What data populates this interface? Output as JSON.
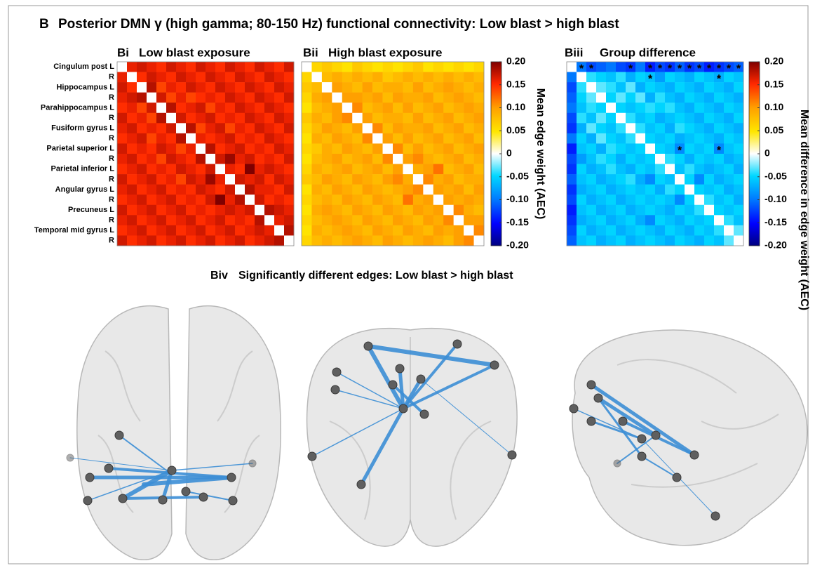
{
  "panel_label": "B",
  "title": "Posterior DMN γ (high gamma; 80-150 Hz) functional connectivity: Low blast > high blast",
  "region_labels": [
    "Cingulum post L",
    "R",
    "Hippocampus L",
    "R",
    "Parahippocampus L",
    "R",
    "Fusiform gyrus L",
    "R",
    "Parietal superior L",
    "R",
    "Parietal inferior L",
    "R",
    "Angular gyrus L",
    "R",
    "Precuneus L",
    "R",
    "Temporal mid gyrus L",
    "R"
  ],
  "panels": [
    {
      "label": "Bi",
      "title": "Low blast exposure",
      "matrix": [
        [],
        [
          0.16
        ],
        [
          0.17,
          0.15
        ],
        [
          0.16,
          0.17,
          0.18
        ],
        [
          0.15,
          0.16,
          0.14,
          0.17
        ],
        [
          0.17,
          0.15,
          0.16,
          0.14,
          0.18
        ],
        [
          0.16,
          0.17,
          0.15,
          0.16,
          0.15,
          0.17
        ],
        [
          0.15,
          0.16,
          0.17,
          0.14,
          0.16,
          0.15,
          0.18
        ],
        [
          0.17,
          0.15,
          0.16,
          0.15,
          0.17,
          0.16,
          0.14,
          0.16
        ],
        [
          0.16,
          0.17,
          0.15,
          0.16,
          0.14,
          0.17,
          0.16,
          0.15,
          0.18
        ],
        [
          0.15,
          0.16,
          0.17,
          0.15,
          0.16,
          0.15,
          0.17,
          0.16,
          0.15,
          0.17
        ],
        [
          0.17,
          0.15,
          0.16,
          0.17,
          0.15,
          0.16,
          0.14,
          0.17,
          0.16,
          0.19,
          0.16
        ],
        [
          0.16,
          0.17,
          0.15,
          0.16,
          0.17,
          0.15,
          0.16,
          0.15,
          0.17,
          0.16,
          0.15,
          0.17
        ],
        [
          0.15,
          0.16,
          0.17,
          0.15,
          0.16,
          0.17,
          0.15,
          0.16,
          0.15,
          0.17,
          0.2,
          0.16,
          0.18
        ],
        [
          0.17,
          0.15,
          0.16,
          0.17,
          0.15,
          0.16,
          0.17,
          0.15,
          0.16,
          0.15,
          0.16,
          0.17,
          0.16,
          0.17
        ],
        [
          0.16,
          0.17,
          0.15,
          0.16,
          0.17,
          0.15,
          0.16,
          0.17,
          0.15,
          0.16,
          0.17,
          0.15,
          0.16,
          0.15,
          0.18
        ],
        [
          0.15,
          0.16,
          0.17,
          0.15,
          0.16,
          0.17,
          0.15,
          0.16,
          0.17,
          0.15,
          0.16,
          0.17,
          0.15,
          0.16,
          0.17,
          0.16
        ],
        [
          0.17,
          0.15,
          0.16,
          0.17,
          0.15,
          0.16,
          0.17,
          0.15,
          0.16,
          0.17,
          0.15,
          0.16,
          0.17,
          0.15,
          0.16,
          0.17,
          0.18
        ]
      ]
    },
    {
      "label": "Bii",
      "title": "High blast exposure",
      "matrix": [
        [],
        [
          0.06
        ],
        [
          0.07,
          0.08
        ],
        [
          0.06,
          0.09,
          0.1
        ],
        [
          0.05,
          0.08,
          0.09,
          0.1
        ],
        [
          0.07,
          0.09,
          0.08,
          0.1,
          0.11
        ],
        [
          0.06,
          0.08,
          0.1,
          0.09,
          0.08,
          0.1
        ],
        [
          0.05,
          0.09,
          0.08,
          0.1,
          0.09,
          0.08,
          0.11
        ],
        [
          0.06,
          0.07,
          0.09,
          0.08,
          0.1,
          0.09,
          0.08,
          0.1
        ],
        [
          0.05,
          0.08,
          0.09,
          0.1,
          0.08,
          0.09,
          0.1,
          0.08,
          0.11
        ],
        [
          0.06,
          0.09,
          0.08,
          0.09,
          0.1,
          0.08,
          0.09,
          0.1,
          0.08,
          0.1
        ],
        [
          0.07,
          0.08,
          0.1,
          0.09,
          0.08,
          0.1,
          0.09,
          0.08,
          0.1,
          0.11,
          0.09
        ],
        [
          0.05,
          0.09,
          0.08,
          0.1,
          0.09,
          0.08,
          0.1,
          0.09,
          0.08,
          0.09,
          0.1,
          0.11
        ],
        [
          0.06,
          0.08,
          0.09,
          0.08,
          0.1,
          0.09,
          0.08,
          0.1,
          0.09,
          0.08,
          0.12,
          0.09,
          0.1
        ],
        [
          0.05,
          0.09,
          0.1,
          0.09,
          0.08,
          0.1,
          0.09,
          0.08,
          0.1,
          0.09,
          0.08,
          0.1,
          0.09,
          0.1
        ],
        [
          0.06,
          0.08,
          0.09,
          0.1,
          0.09,
          0.08,
          0.1,
          0.09,
          0.08,
          0.1,
          0.09,
          0.08,
          0.1,
          0.09,
          0.11
        ],
        [
          0.05,
          0.09,
          0.08,
          0.09,
          0.1,
          0.09,
          0.08,
          0.1,
          0.09,
          0.08,
          0.1,
          0.09,
          0.08,
          0.1,
          0.09,
          0.1
        ],
        [
          0.06,
          0.08,
          0.09,
          0.08,
          0.09,
          0.1,
          0.09,
          0.08,
          0.1,
          0.09,
          0.08,
          0.09,
          0.1,
          0.09,
          0.08,
          0.1,
          0.11
        ]
      ]
    },
    {
      "label": "Biii",
      "title": "Group difference",
      "matrix": [
        [],
        [
          -0.1
        ],
        [
          -0.12,
          -0.04
        ],
        [
          -0.11,
          -0.05,
          -0.03
        ],
        [
          -0.1,
          -0.06,
          -0.04,
          -0.05
        ],
        [
          -0.12,
          -0.04,
          -0.06,
          -0.03,
          -0.05
        ],
        [
          -0.13,
          -0.07,
          -0.03,
          -0.05,
          -0.06,
          -0.04
        ],
        [
          -0.1,
          -0.05,
          -0.07,
          -0.03,
          -0.05,
          -0.06,
          -0.04
        ],
        [
          -0.14,
          -0.06,
          -0.05,
          -0.07,
          -0.04,
          -0.05,
          -0.06,
          -0.05
        ],
        [
          -0.12,
          -0.08,
          -0.06,
          -0.04,
          -0.05,
          -0.07,
          -0.05,
          -0.06,
          -0.05
        ],
        [
          -0.13,
          -0.05,
          -0.07,
          -0.06,
          -0.04,
          -0.06,
          -0.07,
          -0.05,
          -0.06,
          -0.04
        ],
        [
          -0.11,
          -0.06,
          -0.05,
          -0.07,
          -0.06,
          -0.05,
          -0.04,
          -0.07,
          -0.09,
          -0.05,
          -0.06
        ],
        [
          -0.13,
          -0.07,
          -0.06,
          -0.05,
          -0.07,
          -0.06,
          -0.05,
          -0.06,
          -0.05,
          -0.07,
          -0.04,
          -0.05
        ],
        [
          -0.12,
          -0.05,
          -0.07,
          -0.06,
          -0.05,
          -0.07,
          -0.06,
          -0.05,
          -0.06,
          -0.05,
          -0.06,
          -0.09,
          -0.05
        ],
        [
          -0.14,
          -0.06,
          -0.05,
          -0.07,
          -0.06,
          -0.05,
          -0.07,
          -0.06,
          -0.05,
          -0.06,
          -0.07,
          -0.05,
          -0.06,
          -0.04
        ],
        [
          -0.13,
          -0.07,
          -0.06,
          -0.05,
          -0.07,
          -0.06,
          -0.05,
          -0.07,
          -0.09,
          -0.05,
          -0.06,
          -0.07,
          -0.05,
          -0.06,
          -0.05
        ],
        [
          -0.12,
          -0.05,
          -0.07,
          -0.06,
          -0.05,
          -0.07,
          -0.06,
          -0.05,
          -0.06,
          -0.07,
          -0.05,
          -0.06,
          -0.07,
          -0.05,
          -0.06,
          -0.04
        ],
        [
          -0.11,
          -0.06,
          -0.05,
          -0.07,
          -0.06,
          -0.05,
          -0.07,
          -0.06,
          -0.05,
          -0.06,
          -0.07,
          -0.05,
          -0.06,
          -0.07,
          -0.05,
          -0.06,
          -0.03
        ]
      ],
      "significant_marker": "*",
      "significant_cells": [
        [
          0,
          1
        ],
        [
          0,
          2
        ],
        [
          0,
          6
        ],
        [
          0,
          8
        ],
        [
          0,
          9
        ],
        [
          0,
          10
        ],
        [
          0,
          11
        ],
        [
          0,
          12
        ],
        [
          0,
          13
        ],
        [
          0,
          14
        ],
        [
          0,
          15
        ],
        [
          0,
          16
        ],
        [
          0,
          17
        ],
        [
          1,
          8
        ],
        [
          1,
          15
        ],
        [
          8,
          11
        ],
        [
          8,
          15
        ]
      ]
    }
  ],
  "colorbars": [
    {
      "label": "Mean edge weight (AEC)",
      "lim": [
        -0.2,
        0.2
      ],
      "ticks": [
        {
          "value": 0.2,
          "label": "0.20"
        },
        0.15,
        {
          "value": 0.1,
          "label": "0.10"
        },
        0.05,
        0,
        -0.05,
        {
          "value": -0.1,
          "label": "-0.10"
        },
        -0.15,
        {
          "value": -0.2,
          "label": "-0.20"
        }
      ]
    },
    {
      "label": "Mean difference in edge weight (AEC)",
      "lim": [
        -0.2,
        0.2
      ],
      "ticks": [
        {
          "value": 0.2,
          "label": "0.20"
        },
        0.15,
        {
          "value": 0.1,
          "label": "0.10"
        },
        0.05,
        0,
        -0.05,
        {
          "value": -0.1,
          "label": "-0.10"
        },
        -0.15,
        {
          "value": -0.2,
          "label": "-0.20"
        }
      ]
    }
  ],
  "brains": {
    "label": "Biv",
    "title": "Significantly different edges: Low blast > high blast"
  }
}
